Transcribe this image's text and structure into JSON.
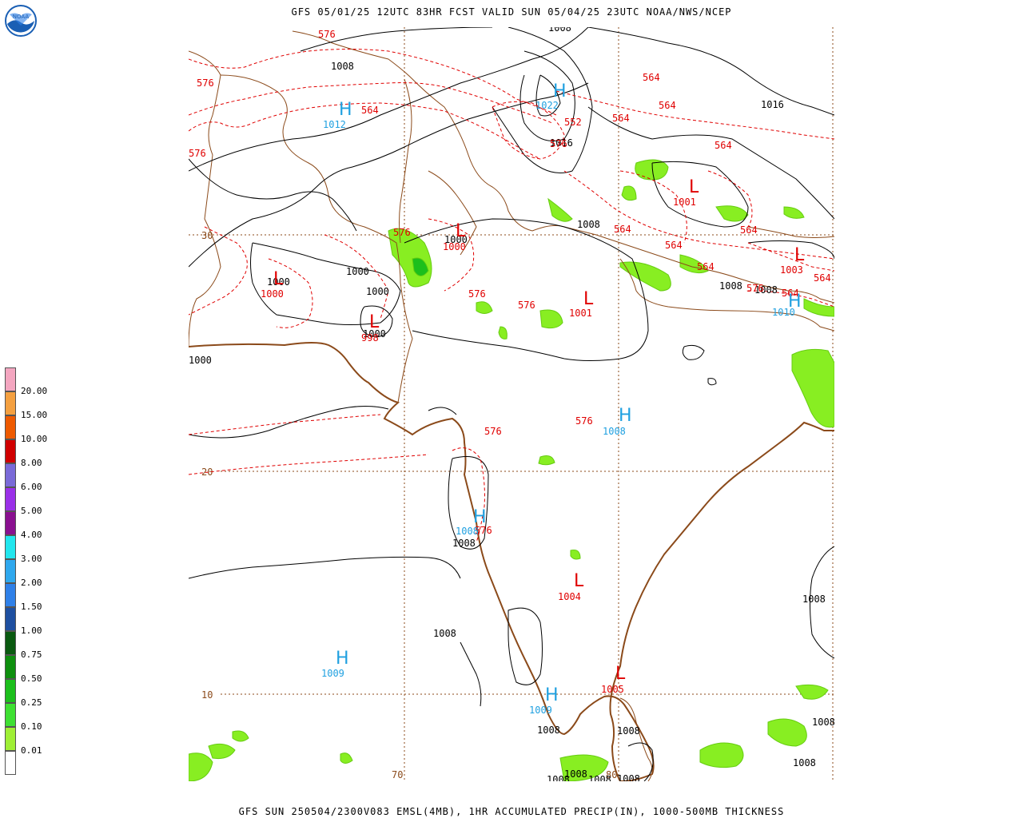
{
  "header": {
    "title": "GFS 05/01/25 12UTC 83HR FCST VALID SUN 05/04/25 23UTC NOAA/NWS/NCEP"
  },
  "footer": {
    "caption": "GFS SUN 250504/2300V083 EMSL(4MB), 1HR ACCUMULATED PRECIP(IN), 1000-500MB THICKNESS"
  },
  "logo": {
    "text": "NOAA",
    "color": "#1a5fb4"
  },
  "colors": {
    "coast": "#8b4a1a",
    "grid": "#8b4a1a",
    "isobar": "#000000",
    "thickness": "#e00000",
    "high": "#1fa0e0",
    "low": "#e00000",
    "precip": "#88ee22"
  },
  "legend": {
    "labels": [
      "0.01",
      "0.10",
      "0.25",
      "0.50",
      "0.75",
      "1.00",
      "1.50",
      "2.00",
      "3.00",
      "4.00",
      "5.00",
      "6.00",
      "8.00",
      "10.00",
      "15.00",
      "20.00"
    ],
    "colors": [
      "#ffffff",
      "#9fef35",
      "#3ee032",
      "#1cbf1c",
      "#0e8f0e",
      "#0a5a10",
      "#1e4fa0",
      "#2f80e8",
      "#2fa8ee",
      "#22e6ee",
      "#8a1090",
      "#9a30e8",
      "#7a6ad8",
      "#d00000",
      "#ee5a00",
      "#f4a040",
      "#f4a6c0"
    ]
  },
  "grid_labels": {
    "lat30": "30",
    "lat20": "20",
    "lat10": "10",
    "lon70": "70",
    "lon80": "80"
  },
  "highs": [
    {
      "letter": "H",
      "value": "1022"
    },
    {
      "letter": "H",
      "value": "1012"
    },
    {
      "letter": "H",
      "value": "1008"
    },
    {
      "letter": "H",
      "value": "1008"
    },
    {
      "letter": "H",
      "value": "1009"
    },
    {
      "letter": "H",
      "value": "1009"
    },
    {
      "letter": "H",
      "value": "1010"
    }
  ],
  "lows": [
    {
      "letter": "L",
      "value": "1001"
    },
    {
      "letter": "L",
      "value": "1001"
    },
    {
      "letter": "L",
      "value": "1000"
    },
    {
      "letter": "L",
      "value": "1000"
    },
    {
      "letter": "L",
      "value": "998"
    },
    {
      "letter": "L",
      "value": "1003"
    },
    {
      "letter": "L",
      "value": "1004"
    },
    {
      "letter": "L",
      "value": "1005"
    }
  ],
  "isobar_labels": [
    "1008",
    "1016",
    "1000",
    "1000",
    "1000",
    "1000",
    "1000",
    "1008",
    "1008",
    "1008",
    "1008",
    "1008",
    "1008",
    "1008",
    "1008",
    "1008",
    "1008",
    "1008",
    "1008",
    "1008",
    "1008",
    "1016",
    "1008",
    "1000"
  ],
  "thickness_labels": [
    "576",
    "576",
    "576",
    "564",
    "564",
    "552",
    "564",
    "564",
    "564",
    "564",
    "564",
    "564",
    "564",
    "576",
    "576",
    "576",
    "576",
    "576",
    "576",
    "576",
    "576",
    "564",
    "564"
  ]
}
